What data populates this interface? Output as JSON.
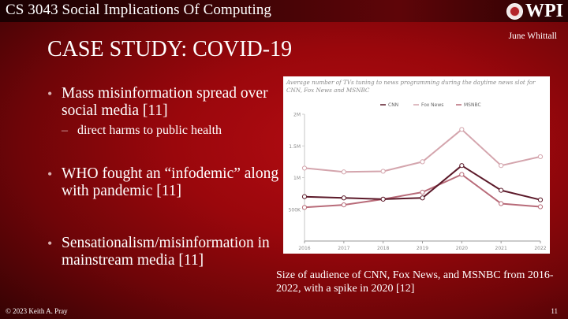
{
  "header": {
    "course_title": "CS 3043 Social Implications Of Computing",
    "logo_text": "WPI",
    "author": "June Whittall"
  },
  "slide": {
    "title": "CASE STUDY: COVID-19",
    "bullets": [
      {
        "text": "Mass misinformation spread over social media [11]",
        "sub": "direct harms to public health"
      },
      {
        "text": "WHO fought an “infodemic” along with pandemic [11]"
      },
      {
        "text": "Sensationalism/misinformation in mainstream media [11]"
      }
    ],
    "bullet_glyph": "•",
    "sub_glyph": "–",
    "caption": "Size of audience of CNN, Fox News, and MSNBC from 2016-2022, with a spike in 2020 [12]"
  },
  "footer": {
    "copyright": "© 2023 Keith A. Pray",
    "page_number": "11"
  },
  "chart_data": {
    "type": "line",
    "title": "Average number of TVs tuning to news programming during the daytime news slot for CNN, Fox News and MSNBC",
    "xlabel": "",
    "ylabel": "",
    "x": [
      "2016",
      "2017",
      "2018",
      "2019",
      "2020",
      "2021",
      "2022"
    ],
    "y_ticks": [
      "500K",
      "1M",
      "1.5M",
      "2M"
    ],
    "ylim": [
      0,
      2000000
    ],
    "grid": false,
    "legend_position": "top-center",
    "series": [
      {
        "name": "CNN",
        "color": "#5c1a2a",
        "values": [
          700000,
          680000,
          660000,
          680000,
          1190000,
          800000,
          650000
        ]
      },
      {
        "name": "Fox News",
        "color": "#d4a5ad",
        "values": [
          1150000,
          1090000,
          1100000,
          1250000,
          1760000,
          1190000,
          1330000
        ]
      },
      {
        "name": "MSNBC",
        "color": "#b86b79",
        "values": [
          530000,
          570000,
          660000,
          770000,
          1050000,
          590000,
          540000
        ]
      }
    ]
  }
}
